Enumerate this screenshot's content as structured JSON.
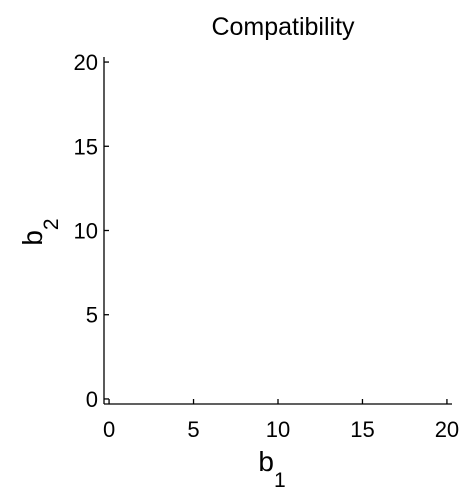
{
  "chart_data": {
    "type": "scatter",
    "title": "Compatibility",
    "xlabel": {
      "base": "b",
      "sub": "1"
    },
    "ylabel": {
      "base": "b",
      "sub": "2"
    },
    "xlim": [
      -0.3,
      20.3
    ],
    "ylim": [
      -0.3,
      20.3
    ],
    "xticks": [
      0,
      5,
      10,
      15,
      20
    ],
    "yticks": [
      0,
      5,
      10,
      15,
      20
    ],
    "grid": false,
    "series": [
      {
        "values": []
      }
    ],
    "colors": {
      "axis": "#000000",
      "background": "#ffffff"
    }
  }
}
